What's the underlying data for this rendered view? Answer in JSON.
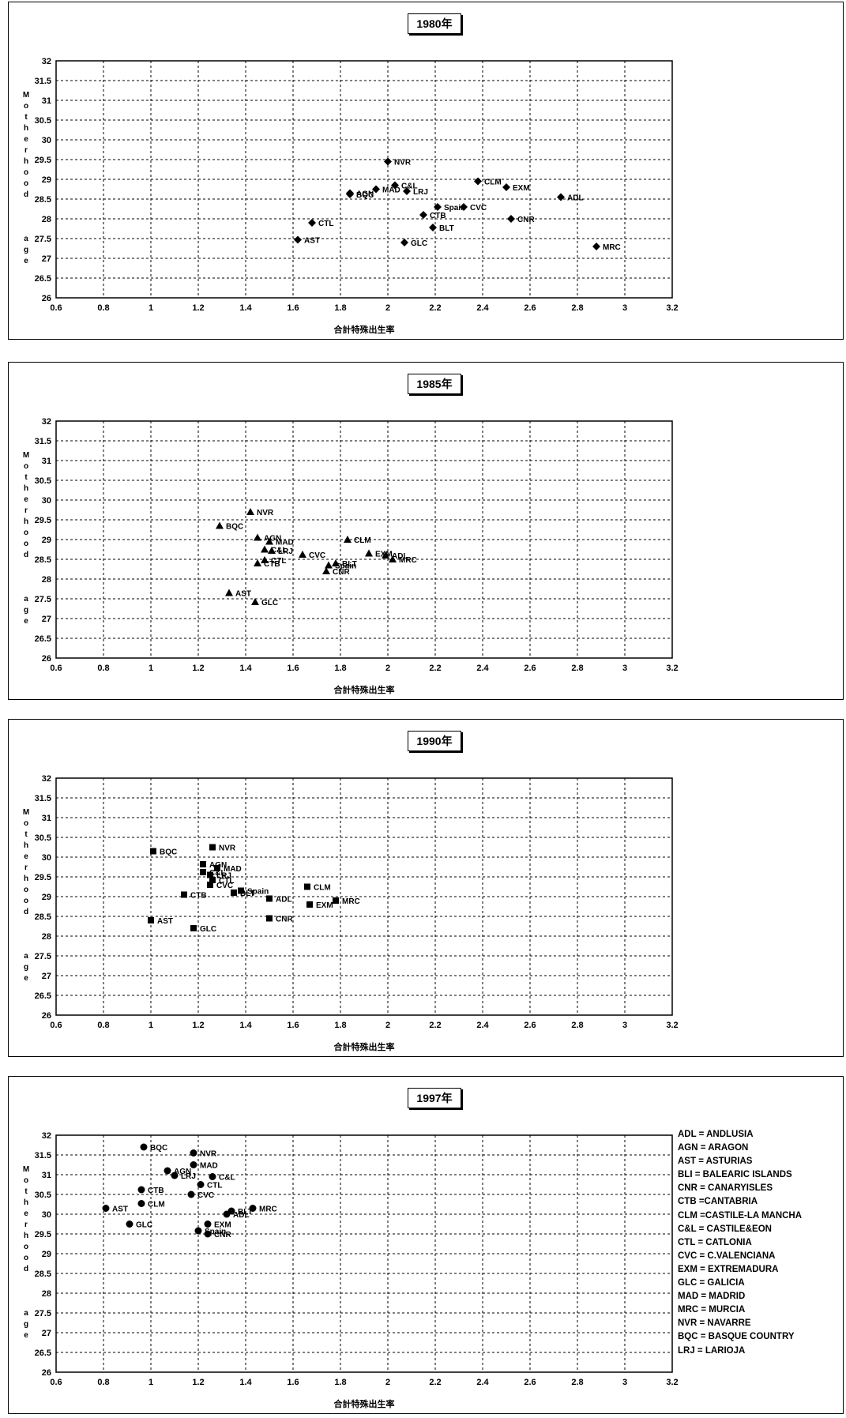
{
  "legend": [
    "ADL = ANDLUSIA",
    "AGN = ARAGON",
    "AST = ASTURIAS",
    "BLI = BALEARIC ISLANDS",
    "CNR = CANARYISLES",
    "CTB =CANTABRIA",
    "CLM =CASTILE-LA MANCHA",
    "C&L = CASTILE&EON",
    "CTL = CATLONIA",
    "CVC = C.VALENCIANA",
    "EXM = EXTREMADURA",
    "GLC = GALICIA",
    "MAD = MADRID",
    "MRC = MURCIA",
    "NVR = NAVARRE",
    "BQC = BASQUE COUNTRY",
    "LRJ = LARIOJA"
  ],
  "chart_data": [
    {
      "type": "scatter",
      "title": "1980年",
      "xlabel": "合計特殊出生率",
      "ylabel": "Motherhood age",
      "xlim": [
        0.6,
        3.2
      ],
      "ylim": [
        26,
        32
      ],
      "xticks": [
        "0.6",
        "0.8",
        "1",
        "1.2",
        "1.4",
        "1.6",
        "1.8",
        "2",
        "2.2",
        "2.4",
        "2.6",
        "2.8",
        "3",
        "3.2"
      ],
      "yticks": [
        "32",
        "31.5",
        "31",
        "30.5",
        "30",
        "29.5",
        "29",
        "28.5",
        "28",
        "27.5",
        "27",
        "26.5",
        "26"
      ],
      "marker": "diamond",
      "grid": true,
      "points": [
        {
          "label": "NVR",
          "x": 2.0,
          "y": 29.45
        },
        {
          "label": "CLM",
          "x": 2.38,
          "y": 28.95
        },
        {
          "label": "EXM",
          "x": 2.5,
          "y": 28.8
        },
        {
          "label": "ADL",
          "x": 2.73,
          "y": 28.55
        },
        {
          "label": "C&L",
          "x": 2.03,
          "y": 28.85
        },
        {
          "label": "LRJ",
          "x": 2.08,
          "y": 28.7
        },
        {
          "label": "AGN",
          "x": 1.84,
          "y": 28.65
        },
        {
          "label": "BQC",
          "x": 1.84,
          "y": 28.62
        },
        {
          "label": "MAD",
          "x": 1.95,
          "y": 28.75
        },
        {
          "label": "Spain",
          "x": 2.21,
          "y": 28.3
        },
        {
          "label": "CVC",
          "x": 2.32,
          "y": 28.3
        },
        {
          "label": "CTB",
          "x": 2.15,
          "y": 28.1
        },
        {
          "label": "CNR",
          "x": 2.52,
          "y": 28.0
        },
        {
          "label": "CTL",
          "x": 1.68,
          "y": 27.9
        },
        {
          "label": "BLT",
          "x": 2.19,
          "y": 27.78
        },
        {
          "label": "AST",
          "x": 1.62,
          "y": 27.47
        },
        {
          "label": "GLC",
          "x": 2.07,
          "y": 27.4
        },
        {
          "label": "MRC",
          "x": 2.88,
          "y": 27.3
        }
      ]
    },
    {
      "type": "scatter",
      "title": "1985年",
      "xlabel": "合計特殊出生率",
      "ylabel": "Motherhood age",
      "xlim": [
        0.6,
        3.2
      ],
      "ylim": [
        26,
        32
      ],
      "xticks": [
        "0.6",
        "0.8",
        "1",
        "1.2",
        "1.4",
        "1.6",
        "1.8",
        "2",
        "2.2",
        "2.4",
        "2.6",
        "2.8",
        "3",
        "3.2"
      ],
      "yticks": [
        "32",
        "31.5",
        "31",
        "30.5",
        "30",
        "29.5",
        "29",
        "28.5",
        "28",
        "27.5",
        "27",
        "26.5",
        "26"
      ],
      "marker": "triangle",
      "grid": true,
      "points": [
        {
          "label": "NVR",
          "x": 1.42,
          "y": 29.7
        },
        {
          "label": "BQC",
          "x": 1.29,
          "y": 29.35
        },
        {
          "label": "AGN",
          "x": 1.45,
          "y": 29.05
        },
        {
          "label": "MAD",
          "x": 1.5,
          "y": 28.95
        },
        {
          "label": "CLM",
          "x": 1.83,
          "y": 29.0
        },
        {
          "label": "C&L",
          "x": 1.48,
          "y": 28.75
        },
        {
          "label": "LRJ",
          "x": 1.51,
          "y": 28.72
        },
        {
          "label": "CVC",
          "x": 1.64,
          "y": 28.62
        },
        {
          "label": "EXM",
          "x": 1.92,
          "y": 28.65
        },
        {
          "label": "ADL",
          "x": 1.99,
          "y": 28.6
        },
        {
          "label": "MRC",
          "x": 2.02,
          "y": 28.5
        },
        {
          "label": "CTL",
          "x": 1.48,
          "y": 28.48
        },
        {
          "label": "CTB",
          "x": 1.45,
          "y": 28.4
        },
        {
          "label": "Spain",
          "x": 1.75,
          "y": 28.35
        },
        {
          "label": "BLT",
          "x": 1.78,
          "y": 28.4
        },
        {
          "label": "CNR",
          "x": 1.74,
          "y": 28.2
        },
        {
          "label": "AST",
          "x": 1.33,
          "y": 27.65
        },
        {
          "label": "GLC",
          "x": 1.44,
          "y": 27.42
        }
      ]
    },
    {
      "type": "scatter",
      "title": "1990年",
      "xlabel": "合計特殊出生率",
      "ylabel": "Motherhood age",
      "xlim": [
        0.6,
        3.2
      ],
      "ylim": [
        26,
        32
      ],
      "xticks": [
        "0.6",
        "0.8",
        "1",
        "1.2",
        "1.4",
        "1.6",
        "1.8",
        "2",
        "2.2",
        "2.4",
        "2.6",
        "2.8",
        "3",
        "3.2"
      ],
      "yticks": [
        "32",
        "31.5",
        "31",
        "30.5",
        "30",
        "29.5",
        "29",
        "28.5",
        "28",
        "27.5",
        "27",
        "26.5",
        "26"
      ],
      "marker": "square",
      "grid": true,
      "points": [
        {
          "label": "NVR",
          "x": 1.26,
          "y": 30.25
        },
        {
          "label": "BQC",
          "x": 1.01,
          "y": 30.15
        },
        {
          "label": "AGN",
          "x": 1.22,
          "y": 29.82
        },
        {
          "label": "MAD",
          "x": 1.28,
          "y": 29.72
        },
        {
          "label": "C&L",
          "x": 1.22,
          "y": 29.62
        },
        {
          "label": "LRJ",
          "x": 1.25,
          "y": 29.55
        },
        {
          "label": "CTL",
          "x": 1.26,
          "y": 29.42
        },
        {
          "label": "CVC",
          "x": 1.25,
          "y": 29.3
        },
        {
          "label": "CLM",
          "x": 1.66,
          "y": 29.25
        },
        {
          "label": "CTB",
          "x": 1.14,
          "y": 29.05
        },
        {
          "label": "Spain",
          "x": 1.38,
          "y": 29.15
        },
        {
          "label": "BLT",
          "x": 1.35,
          "y": 29.1
        },
        {
          "label": "ADL",
          "x": 1.5,
          "y": 28.95
        },
        {
          "label": "MRC",
          "x": 1.78,
          "y": 28.9
        },
        {
          "label": "EXM",
          "x": 1.67,
          "y": 28.8
        },
        {
          "label": "CNR",
          "x": 1.5,
          "y": 28.45
        },
        {
          "label": "AST",
          "x": 1.0,
          "y": 28.4
        },
        {
          "label": "GLC",
          "x": 1.18,
          "y": 28.2
        }
      ]
    },
    {
      "type": "scatter",
      "title": "1997年",
      "xlabel": "合計特殊出生率",
      "ylabel": "Motherhood age",
      "xlim": [
        0.6,
        3.2
      ],
      "ylim": [
        26,
        32
      ],
      "xticks": [
        "0.6",
        "0.8",
        "1",
        "1.2",
        "1.4",
        "1.6",
        "1.8",
        "2",
        "2.2",
        "2.4",
        "2.6",
        "2.8",
        "3",
        "3.2"
      ],
      "yticks": [
        "32",
        "31.5",
        "31",
        "30.5",
        "30",
        "29.5",
        "29",
        "28.5",
        "28",
        "27.5",
        "27",
        "26.5",
        "26"
      ],
      "marker": "circle",
      "grid": true,
      "points": [
        {
          "label": "BQC",
          "x": 0.97,
          "y": 31.7
        },
        {
          "label": "NVR",
          "x": 1.18,
          "y": 31.55
        },
        {
          "label": "MAD",
          "x": 1.18,
          "y": 31.25
        },
        {
          "label": "AGN",
          "x": 1.07,
          "y": 31.1
        },
        {
          "label": "LRJ",
          "x": 1.1,
          "y": 30.98
        },
        {
          "label": "C&L",
          "x": 1.26,
          "y": 30.95
        },
        {
          "label": "CTL",
          "x": 1.21,
          "y": 30.75
        },
        {
          "label": "CTB",
          "x": 0.96,
          "y": 30.62
        },
        {
          "label": "CVC",
          "x": 1.17,
          "y": 30.5
        },
        {
          "label": "CLM",
          "x": 0.96,
          "y": 30.27
        },
        {
          "label": "AST",
          "x": 0.81,
          "y": 30.15
        },
        {
          "label": "MRC",
          "x": 1.43,
          "y": 30.15
        },
        {
          "label": "BLT",
          "x": 1.34,
          "y": 30.08
        },
        {
          "label": "ADL",
          "x": 1.32,
          "y": 30.0
        },
        {
          "label": "GLC",
          "x": 0.91,
          "y": 29.75
        },
        {
          "label": "EXM",
          "x": 1.24,
          "y": 29.75
        },
        {
          "label": "Spain",
          "x": 1.2,
          "y": 29.58
        },
        {
          "label": "CNR",
          "x": 1.24,
          "y": 29.5
        }
      ]
    }
  ]
}
